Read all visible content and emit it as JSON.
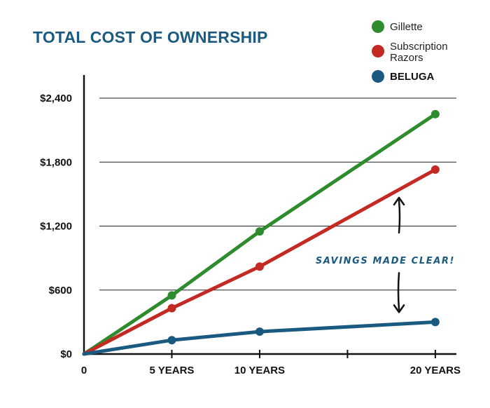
{
  "chart_data": {
    "type": "line",
    "title": "TOTAL COST OF OWNERSHIP",
    "xlabel": "",
    "ylabel": "",
    "x": [
      0,
      5,
      10,
      20
    ],
    "x_ticks": [
      {
        "value": 0,
        "label": "0"
      },
      {
        "value": 5,
        "label": "5 YEARS"
      },
      {
        "value": 10,
        "label": "10 YEARS"
      },
      {
        "value": 15,
        "label": ""
      },
      {
        "value": 20,
        "label": "20 YEARS"
      }
    ],
    "xlim": [
      0,
      21.2
    ],
    "ylim": [
      0,
      2400
    ],
    "y_ticks": [
      {
        "value": 0,
        "label": "$0"
      },
      {
        "value": 600,
        "label": "$600"
      },
      {
        "value": 1200,
        "label": "$1,200"
      },
      {
        "value": 1800,
        "label": "$1,800"
      },
      {
        "value": 2400,
        "label": "$2,400"
      }
    ],
    "series": [
      {
        "name": "Gillette",
        "color": "#2e8b2e",
        "bold": false,
        "values": [
          0,
          550,
          1150,
          2250
        ]
      },
      {
        "name": "Subscription Razors",
        "name_lines": [
          "Subscription",
          "Razors"
        ],
        "color": "#c42a23",
        "bold": false,
        "values": [
          0,
          430,
          820,
          1730
        ]
      },
      {
        "name": "BELUGA",
        "color": "#1b5a80",
        "bold": true,
        "values": [
          0,
          130,
          210,
          300
        ]
      }
    ],
    "annotation": "SAVINGS MADE CLEAR!",
    "grid": true,
    "legend": "top-right"
  }
}
